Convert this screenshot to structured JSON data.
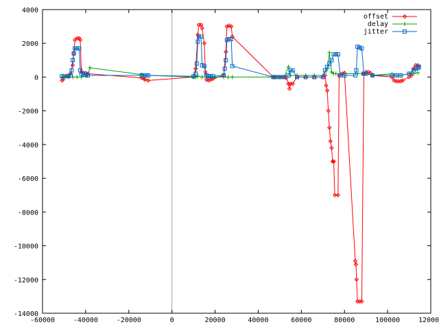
{
  "chart_data": {
    "type": "line",
    "title": "",
    "xlabel": "",
    "ylabel": "",
    "xlim": [
      -60000,
      120000
    ],
    "ylim": [
      -14000,
      4000
    ],
    "x_ticks": [
      -60000,
      -40000,
      -20000,
      0,
      20000,
      40000,
      60000,
      80000,
      100000,
      120000
    ],
    "y_ticks": [
      4000,
      2000,
      0,
      -2000,
      -4000,
      -6000,
      -8000,
      -10000,
      -12000,
      -14000
    ],
    "x_tick_labels": [
      "-60000",
      "-40000",
      "-20000",
      "0",
      "20000",
      "40000",
      "60000",
      "80000",
      "100000",
      "120000"
    ],
    "y_tick_labels": [
      "4000",
      "2000",
      "0",
      "-2000",
      "-4000",
      "-6000",
      "-8000",
      "-10000",
      "-12000",
      "-14000"
    ],
    "zero_axis_x": 0,
    "grid": false,
    "legend_position": "top-right",
    "series": [
      {
        "name": "offset",
        "color": "#ff0000",
        "marker": "diamond",
        "points": [
          [
            -51000,
            -200
          ],
          [
            -50500,
            -150
          ],
          [
            -49000,
            50
          ],
          [
            -48000,
            100
          ],
          [
            -47000,
            200
          ],
          [
            -46000,
            700
          ],
          [
            -45500,
            1400
          ],
          [
            -45000,
            2200
          ],
          [
            -44000,
            2300
          ],
          [
            -43000,
            2300
          ],
          [
            -42500,
            2200
          ],
          [
            -42000,
            300
          ],
          [
            -41000,
            250
          ],
          [
            -40000,
            250
          ],
          [
            -39000,
            200
          ],
          [
            -14000,
            -50
          ],
          [
            -13000,
            -100
          ],
          [
            -12500,
            -150
          ],
          [
            -11000,
            -200
          ],
          [
            10000,
            0
          ],
          [
            11000,
            500
          ],
          [
            12000,
            2500
          ],
          [
            12500,
            3100
          ],
          [
            13500,
            3100
          ],
          [
            14000,
            2900
          ],
          [
            15000,
            2000
          ],
          [
            15500,
            300
          ],
          [
            16000,
            -150
          ],
          [
            17000,
            -200
          ],
          [
            18000,
            -150
          ],
          [
            19000,
            -100
          ],
          [
            24000,
            100
          ],
          [
            25000,
            1500
          ],
          [
            25500,
            3000
          ],
          [
            26500,
            3050
          ],
          [
            27500,
            3000
          ],
          [
            28000,
            2400
          ],
          [
            47000,
            0
          ],
          [
            48000,
            0
          ],
          [
            50000,
            0
          ],
          [
            52000,
            0
          ],
          [
            53000,
            -50
          ],
          [
            54000,
            -400
          ],
          [
            54500,
            -700
          ],
          [
            55000,
            -400
          ],
          [
            56000,
            -400
          ],
          [
            58000,
            0
          ],
          [
            62000,
            0
          ],
          [
            66000,
            0
          ],
          [
            70000,
            0
          ],
          [
            71000,
            100
          ],
          [
            71500,
            -500
          ],
          [
            72000,
            -800
          ],
          [
            72500,
            -2000
          ],
          [
            73000,
            -3000
          ],
          [
            73500,
            -3800
          ],
          [
            74000,
            -4200
          ],
          [
            74500,
            -5000
          ],
          [
            75000,
            -5000
          ],
          [
            75500,
            -7000
          ],
          [
            77000,
            -7000
          ],
          [
            77500,
            100
          ],
          [
            79000,
            200
          ],
          [
            80000,
            250
          ],
          [
            85000,
            -10900
          ],
          [
            85300,
            -11100
          ],
          [
            85600,
            -12000
          ],
          [
            86000,
            -13300
          ],
          [
            87000,
            -13300
          ],
          [
            88000,
            -13300
          ],
          [
            89000,
            200
          ],
          [
            90000,
            300
          ],
          [
            91000,
            300
          ],
          [
            92000,
            250
          ],
          [
            93000,
            100
          ],
          [
            102000,
            0
          ],
          [
            103000,
            -200
          ],
          [
            104000,
            -250
          ],
          [
            105000,
            -250
          ],
          [
            106000,
            -250
          ],
          [
            107000,
            -200
          ],
          [
            110000,
            0
          ],
          [
            111000,
            100
          ],
          [
            112000,
            500
          ],
          [
            113000,
            700
          ],
          [
            114000,
            700
          ],
          [
            114500,
            650
          ]
        ]
      },
      {
        "name": "delay",
        "color": "#00a000",
        "marker": "plus",
        "points": [
          [
            -51000,
            0
          ],
          [
            -50000,
            0
          ],
          [
            -48000,
            0
          ],
          [
            -46000,
            0
          ],
          [
            -44000,
            0
          ],
          [
            -42000,
            0
          ],
          [
            -40000,
            50
          ],
          [
            -39000,
            100
          ],
          [
            -38000,
            550
          ],
          [
            -14000,
            150
          ],
          [
            -13000,
            100
          ],
          [
            -12000,
            100
          ],
          [
            -11000,
            100
          ],
          [
            10000,
            0
          ],
          [
            11000,
            0
          ],
          [
            12000,
            50
          ],
          [
            14000,
            0
          ],
          [
            16000,
            0
          ],
          [
            18000,
            0
          ],
          [
            20000,
            0
          ],
          [
            24000,
            0
          ],
          [
            26000,
            0
          ],
          [
            28000,
            0
          ],
          [
            47000,
            0
          ],
          [
            48000,
            0
          ],
          [
            50000,
            0
          ],
          [
            52000,
            0
          ],
          [
            54000,
            600
          ],
          [
            55000,
            100
          ],
          [
            58000,
            100
          ],
          [
            62000,
            100
          ],
          [
            66000,
            100
          ],
          [
            70000,
            100
          ],
          [
            72000,
            500
          ],
          [
            73000,
            1450
          ],
          [
            74000,
            300
          ],
          [
            75000,
            200
          ],
          [
            76000,
            200
          ],
          [
            78000,
            200
          ],
          [
            80000,
            200
          ],
          [
            85000,
            200
          ],
          [
            86000,
            200
          ],
          [
            88000,
            200
          ],
          [
            90000,
            200
          ],
          [
            93000,
            100
          ],
          [
            102000,
            200
          ],
          [
            104000,
            100
          ],
          [
            106000,
            100
          ],
          [
            110000,
            200
          ],
          [
            112000,
            200
          ],
          [
            114000,
            250
          ]
        ]
      },
      {
        "name": "jitter",
        "color": "#0066cc",
        "marker": "square",
        "points": [
          [
            -51000,
            50
          ],
          [
            -50000,
            50
          ],
          [
            -48000,
            50
          ],
          [
            -47000,
            100
          ],
          [
            -46500,
            400
          ],
          [
            -46000,
            1000
          ],
          [
            -45500,
            1400
          ],
          [
            -45000,
            1700
          ],
          [
            -44000,
            1700
          ],
          [
            -43000,
            1700
          ],
          [
            -42500,
            400
          ],
          [
            -42000,
            200
          ],
          [
            -41000,
            150
          ],
          [
            -40000,
            150
          ],
          [
            -39000,
            100
          ],
          [
            -14000,
            100
          ],
          [
            -13000,
            100
          ],
          [
            -12000,
            100
          ],
          [
            -11000,
            100
          ],
          [
            10000,
            50
          ],
          [
            11000,
            200
          ],
          [
            11500,
            800
          ],
          [
            12000,
            2100
          ],
          [
            12500,
            2400
          ],
          [
            13500,
            2400
          ],
          [
            14000,
            700
          ],
          [
            15000,
            650
          ],
          [
            16000,
            100
          ],
          [
            17000,
            50
          ],
          [
            18000,
            50
          ],
          [
            19000,
            50
          ],
          [
            24000,
            100
          ],
          [
            24500,
            500
          ],
          [
            25000,
            1000
          ],
          [
            25500,
            2200
          ],
          [
            26500,
            2250
          ],
          [
            27500,
            2250
          ],
          [
            28000,
            650
          ],
          [
            47000,
            0
          ],
          [
            48000,
            0
          ],
          [
            50000,
            0
          ],
          [
            52000,
            0
          ],
          [
            54000,
            100
          ],
          [
            55000,
            400
          ],
          [
            56000,
            400
          ],
          [
            58000,
            0
          ],
          [
            62000,
            0
          ],
          [
            66000,
            0
          ],
          [
            70000,
            0
          ],
          [
            71000,
            400
          ],
          [
            72000,
            600
          ],
          [
            73000,
            800
          ],
          [
            74000,
            1000
          ],
          [
            75000,
            1350
          ],
          [
            76000,
            1350
          ],
          [
            77000,
            1350
          ],
          [
            78000,
            100
          ],
          [
            80000,
            100
          ],
          [
            85000,
            100
          ],
          [
            85500,
            400
          ],
          [
            86000,
            1800
          ],
          [
            87000,
            1750
          ],
          [
            88000,
            1700
          ],
          [
            89000,
            200
          ],
          [
            90000,
            200
          ],
          [
            93000,
            100
          ],
          [
            102000,
            100
          ],
          [
            104000,
            100
          ],
          [
            106000,
            100
          ],
          [
            110000,
            200
          ],
          [
            112000,
            400
          ],
          [
            113000,
            500
          ],
          [
            114000,
            550
          ],
          [
            114500,
            600
          ]
        ]
      }
    ]
  }
}
